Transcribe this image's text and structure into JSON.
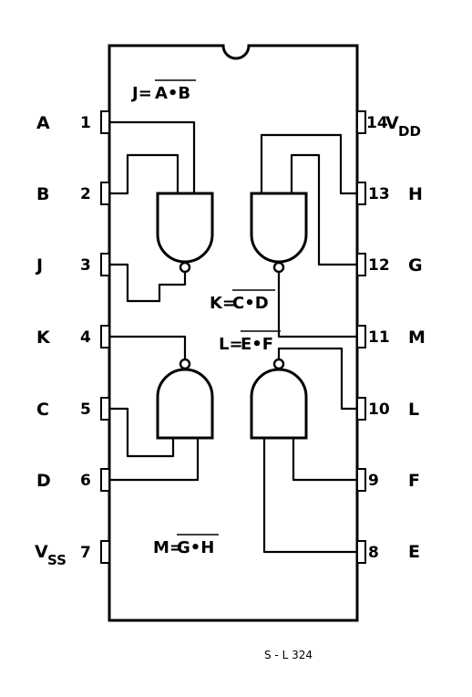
{
  "left_pins": [
    {
      "number": "1",
      "signal": "A"
    },
    {
      "number": "2",
      "signal": "B"
    },
    {
      "number": "3",
      "signal": "J"
    },
    {
      "number": "4",
      "signal": "K"
    },
    {
      "number": "5",
      "signal": "C"
    },
    {
      "number": "6",
      "signal": "D"
    },
    {
      "number": "7",
      "signal": "V",
      "signal_sub": "SS"
    }
  ],
  "right_pins": [
    {
      "number": "14",
      "signal": "V",
      "signal_sub": "DD"
    },
    {
      "number": "13",
      "signal": "H"
    },
    {
      "number": "12",
      "signal": "G"
    },
    {
      "number": "11",
      "signal": "M"
    },
    {
      "number": "10",
      "signal": "L"
    },
    {
      "number": "9",
      "signal": "F"
    },
    {
      "number": "8",
      "signal": "E"
    }
  ],
  "equations": {
    "j": {
      "lhs": "J=",
      "rhs": "A•B"
    },
    "k": {
      "lhs": "K=",
      "rhs": "C•D"
    },
    "l": {
      "lhs": "L=",
      "rhs": "E•F"
    },
    "m": {
      "lhs": "M=",
      "rhs": "G•H"
    }
  },
  "figure_code": "S - L 324"
}
